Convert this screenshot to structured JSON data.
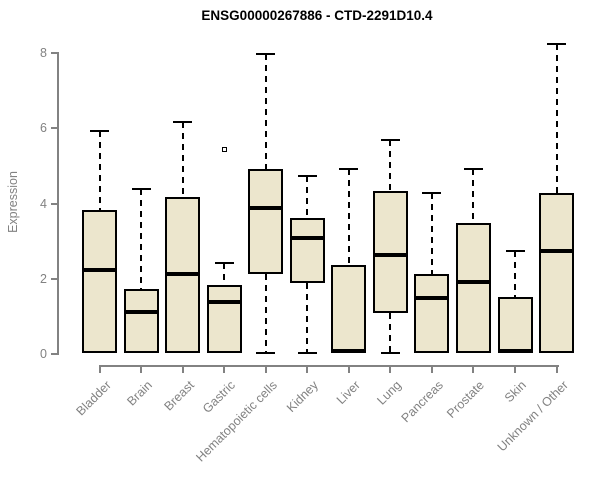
{
  "title": "ENSG00000267886 - CTD-2291D10.4",
  "y_axis": {
    "label": "Expression"
  },
  "chart_data": {
    "type": "boxplot",
    "title": "ENSG00000267886 - CTD-2291D10.4",
    "xlabel": "",
    "ylabel": "Expression",
    "ylim": [
      0,
      8
    ],
    "yticks": [
      0,
      2,
      4,
      6,
      8
    ],
    "grid": false,
    "legend": "none",
    "box_fill": "#ece6cd",
    "box_stroke": "#000000",
    "axis_color": "#828282",
    "label_color": "#828282",
    "categories": [
      "Bladder",
      "Brain",
      "Breast",
      "Gastric",
      "Hematopoietic cells",
      "Kidney",
      "Liver",
      "Lung",
      "Pancreas",
      "Prostate",
      "Skin",
      "Unknown / Other"
    ],
    "series": [
      {
        "category": "Bladder",
        "min": 0,
        "q1": 0,
        "median": 2.2,
        "q3": 3.8,
        "max": 5.9,
        "outliers": []
      },
      {
        "category": "Brain",
        "min": 0,
        "q1": 0,
        "median": 1.1,
        "q3": 1.7,
        "max": 4.35,
        "outliers": []
      },
      {
        "category": "Breast",
        "min": 0,
        "q1": 0,
        "median": 2.1,
        "q3": 4.15,
        "max": 6.15,
        "outliers": []
      },
      {
        "category": "Gastric",
        "min": 0,
        "q1": 0,
        "median": 1.35,
        "q3": 1.8,
        "max": 2.4,
        "outliers": [
          5.4
        ]
      },
      {
        "category": "Hematopoietic cells",
        "min": 0,
        "q1": 2.1,
        "median": 3.85,
        "q3": 4.9,
        "max": 7.95,
        "outliers": []
      },
      {
        "category": "Kidney",
        "min": 0,
        "q1": 1.85,
        "median": 3.05,
        "q3": 3.6,
        "max": 4.7,
        "outliers": []
      },
      {
        "category": "Liver",
        "min": 0,
        "q1": 0,
        "median": 0.05,
        "q3": 2.35,
        "max": 4.9,
        "outliers": []
      },
      {
        "category": "Lung",
        "min": 0,
        "q1": 1.05,
        "median": 2.6,
        "q3": 4.3,
        "max": 5.65,
        "outliers": []
      },
      {
        "category": "Pancreas",
        "min": 0,
        "q1": 0,
        "median": 1.45,
        "q3": 2.1,
        "max": 4.25,
        "outliers": []
      },
      {
        "category": "Prostate",
        "min": 0,
        "q1": 0,
        "median": 1.9,
        "q3": 3.45,
        "max": 4.9,
        "outliers": []
      },
      {
        "category": "Skin",
        "min": 0,
        "q1": 0,
        "median": 0.05,
        "q3": 1.5,
        "max": 2.7,
        "outliers": []
      },
      {
        "category": "Unknown / Other",
        "min": 0,
        "q1": 0,
        "median": 2.7,
        "q3": 4.25,
        "max": 8.2,
        "outliers": []
      }
    ]
  }
}
